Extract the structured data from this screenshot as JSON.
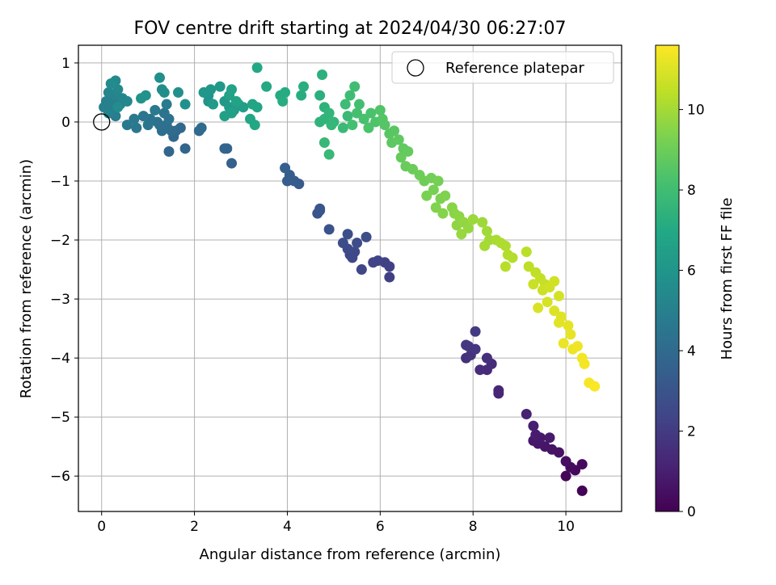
{
  "chart_data": {
    "type": "scatter",
    "title": "FOV centre drift starting at 2024/04/30 06:27:07",
    "xlabel": "Angular distance from reference (arcmin)",
    "ylabel": "Rotation from reference (arcmin)",
    "xlim": [
      -0.5,
      11.2
    ],
    "ylim": [
      -6.6,
      1.3
    ],
    "xticks": [
      0,
      2,
      4,
      6,
      8,
      10
    ],
    "xtick_labels": [
      "0",
      "2",
      "4",
      "6",
      "8",
      "10"
    ],
    "yticks": [
      1,
      0,
      -1,
      -2,
      -3,
      -4,
      -5,
      -6
    ],
    "ytick_labels": [
      "1",
      "0",
      "−1",
      "−2",
      "−3",
      "−4",
      "−5",
      "−6"
    ],
    "grid": true,
    "legend_position": "top-right",
    "legend": {
      "label": "Reference platepar"
    },
    "reference_point": {
      "x": 0,
      "y": 0
    },
    "colormap": "viridis",
    "colorbar": {
      "label": "Hours from first FF file",
      "range": [
        0,
        11.6
      ],
      "ticks": [
        0,
        2,
        4,
        6,
        8,
        10
      ],
      "tick_labels": [
        "0",
        "2",
        "4",
        "6",
        "8",
        "10"
      ]
    },
    "series": [
      {
        "points": [
          [
            10.35,
            -6.25,
            0.05
          ],
          [
            10.0,
            -6.0,
            0.15
          ],
          [
            10.2,
            -5.9,
            0.25
          ],
          [
            10.35,
            -5.8,
            0.3
          ],
          [
            10.1,
            -5.85,
            0.35
          ],
          [
            10.0,
            -5.75,
            0.45
          ],
          [
            9.85,
            -5.6,
            0.55
          ],
          [
            9.7,
            -5.55,
            0.6
          ],
          [
            9.55,
            -5.5,
            0.65
          ],
          [
            9.4,
            -5.45,
            0.7
          ],
          [
            9.3,
            -5.4,
            0.75
          ],
          [
            9.45,
            -5.35,
            0.8
          ],
          [
            9.65,
            -5.35,
            0.85
          ],
          [
            9.35,
            -5.3,
            0.9
          ],
          [
            9.3,
            -5.15,
            1.0
          ],
          [
            9.15,
            -4.95,
            1.1
          ],
          [
            8.55,
            -4.6,
            1.2
          ],
          [
            8.55,
            -4.55,
            1.25
          ],
          [
            8.3,
            -4.2,
            1.4
          ],
          [
            8.15,
            -4.2,
            1.45
          ],
          [
            8.4,
            -4.1,
            1.5
          ],
          [
            8.3,
            -4.0,
            1.55
          ],
          [
            7.85,
            -4.0,
            1.6
          ],
          [
            7.95,
            -3.95,
            1.7
          ],
          [
            8.05,
            -3.85,
            1.8
          ],
          [
            7.9,
            -3.8,
            1.85
          ],
          [
            7.85,
            -3.78,
            1.9
          ],
          [
            8.05,
            -3.55,
            2.0
          ],
          [
            6.2,
            -2.63,
            2.15
          ],
          [
            6.2,
            -2.45,
            2.2
          ],
          [
            6.1,
            -2.38,
            2.25
          ],
          [
            5.95,
            -2.35,
            2.3
          ],
          [
            5.85,
            -2.38,
            2.35
          ],
          [
            5.6,
            -2.5,
            2.4
          ],
          [
            5.35,
            -2.25,
            2.45
          ],
          [
            5.4,
            -2.3,
            2.5
          ],
          [
            5.45,
            -2.2,
            2.55
          ],
          [
            5.3,
            -2.15,
            2.6
          ],
          [
            5.5,
            -2.05,
            2.65
          ],
          [
            5.2,
            -2.05,
            2.7
          ],
          [
            5.7,
            -1.95,
            2.75
          ],
          [
            5.3,
            -1.9,
            2.8
          ],
          [
            4.9,
            -1.82,
            2.9
          ],
          [
            4.65,
            -1.55,
            3.0
          ],
          [
            4.7,
            -1.5,
            3.05
          ],
          [
            4.7,
            -1.47,
            3.1
          ],
          [
            4.25,
            -1.05,
            3.3
          ],
          [
            4.15,
            -1.0,
            3.35
          ],
          [
            4.0,
            -1.0,
            3.4
          ],
          [
            4.05,
            -0.9,
            3.45
          ],
          [
            3.95,
            -0.78,
            3.5
          ],
          [
            2.8,
            -0.7,
            3.6
          ],
          [
            2.7,
            -0.45,
            3.65
          ],
          [
            2.65,
            -0.45,
            3.7
          ],
          [
            1.8,
            -0.45,
            3.75
          ],
          [
            1.45,
            -0.5,
            3.8
          ],
          [
            1.55,
            -0.25,
            3.85
          ],
          [
            1.6,
            -0.15,
            3.9
          ],
          [
            1.7,
            -0.1,
            3.95
          ],
          [
            2.1,
            -0.15,
            4.0
          ],
          [
            2.15,
            -0.1,
            4.05
          ],
          [
            1.5,
            -0.15,
            4.1
          ],
          [
            1.3,
            -0.15,
            4.15
          ],
          [
            1.4,
            -0.05,
            4.2
          ],
          [
            1.25,
            -0.05,
            4.25
          ],
          [
            1.2,
            0.0,
            4.3
          ],
          [
            1.45,
            0.05,
            4.35
          ],
          [
            1.35,
            0.15,
            4.4
          ],
          [
            1.05,
            0.05,
            4.45
          ],
          [
            0.9,
            0.1,
            4.5
          ],
          [
            1.0,
            -0.05,
            4.55
          ],
          [
            0.75,
            -0.1,
            4.6
          ],
          [
            0.55,
            -0.05,
            4.65
          ],
          [
            0.7,
            0.05,
            4.7
          ],
          [
            1.15,
            0.2,
            4.75
          ],
          [
            1.4,
            0.3,
            4.8
          ],
          [
            0.3,
            0.1,
            4.85
          ],
          [
            0.2,
            0.2,
            4.9
          ],
          [
            0.25,
            0.35,
            4.95
          ],
          [
            0.1,
            0.35,
            5.0
          ],
          [
            0.05,
            0.25,
            5.05
          ],
          [
            0.15,
            0.15,
            5.1
          ],
          [
            0.4,
            0.3,
            5.15
          ],
          [
            0.3,
            0.45,
            5.2
          ],
          [
            0.15,
            0.5,
            5.25
          ],
          [
            0.45,
            0.4,
            5.3
          ],
          [
            0.55,
            0.35,
            5.35
          ],
          [
            0.35,
            0.55,
            5.4
          ],
          [
            0.3,
            0.7,
            5.45
          ],
          [
            0.2,
            0.65,
            5.5
          ],
          [
            0.35,
            0.25,
            5.55
          ],
          [
            1.3,
            0.55,
            5.6
          ],
          [
            1.35,
            0.5,
            5.65
          ],
          [
            1.65,
            0.5,
            5.7
          ],
          [
            1.25,
            0.75,
            5.75
          ],
          [
            1.8,
            0.3,
            5.8
          ],
          [
            0.95,
            0.45,
            5.85
          ],
          [
            0.85,
            0.4,
            5.9
          ],
          [
            2.3,
            0.35,
            5.95
          ],
          [
            2.3,
            0.45,
            6.0
          ],
          [
            2.2,
            0.5,
            6.05
          ],
          [
            2.35,
            0.55,
            6.1
          ],
          [
            2.55,
            0.6,
            6.15
          ],
          [
            2.65,
            0.35,
            6.2
          ],
          [
            2.4,
            0.3,
            6.25
          ],
          [
            2.75,
            0.25,
            6.3
          ],
          [
            2.85,
            0.2,
            6.35
          ],
          [
            2.95,
            0.3,
            6.4
          ],
          [
            3.05,
            0.25,
            6.45
          ],
          [
            2.65,
            0.1,
            6.5
          ],
          [
            2.8,
            0.15,
            6.55
          ],
          [
            2.75,
            0.45,
            6.6
          ],
          [
            2.8,
            0.55,
            6.65
          ],
          [
            2.9,
            0.35,
            6.7
          ],
          [
            3.25,
            0.3,
            6.75
          ],
          [
            3.35,
            0.25,
            6.8
          ],
          [
            3.2,
            0.05,
            6.85
          ],
          [
            3.3,
            -0.05,
            6.9
          ],
          [
            3.35,
            0.92,
            6.95
          ],
          [
            3.55,
            0.6,
            7.0
          ],
          [
            3.85,
            0.45,
            7.05
          ],
          [
            3.95,
            0.5,
            7.1
          ],
          [
            3.9,
            0.35,
            7.15
          ],
          [
            4.3,
            0.45,
            7.2
          ],
          [
            4.35,
            0.6,
            7.25
          ],
          [
            4.7,
            0.45,
            7.3
          ],
          [
            4.75,
            0.8,
            7.35
          ],
          [
            4.8,
            0.25,
            7.4
          ],
          [
            4.7,
            0.0,
            7.45
          ],
          [
            4.8,
            0.05,
            7.5
          ],
          [
            4.9,
            0.15,
            7.55
          ],
          [
            5.0,
            0.0,
            7.6
          ],
          [
            4.95,
            -0.05,
            7.65
          ],
          [
            4.8,
            -0.35,
            7.7
          ],
          [
            4.9,
            -0.55,
            7.75
          ],
          [
            5.2,
            -0.1,
            7.8
          ],
          [
            5.3,
            0.1,
            7.85
          ],
          [
            5.25,
            0.3,
            7.9
          ],
          [
            5.35,
            0.45,
            7.95
          ],
          [
            5.45,
            0.6,
            8.0
          ],
          [
            5.55,
            0.3,
            8.05
          ],
          [
            5.4,
            -0.05,
            8.1
          ],
          [
            5.5,
            0.15,
            8.15
          ],
          [
            5.65,
            0.05,
            8.2
          ],
          [
            5.8,
            0.15,
            8.25
          ],
          [
            5.75,
            -0.1,
            8.3
          ],
          [
            5.9,
            0.0,
            8.35
          ],
          [
            6.0,
            0.2,
            8.4
          ],
          [
            6.05,
            0.05,
            8.45
          ],
          [
            6.1,
            -0.05,
            8.5
          ],
          [
            6.2,
            -0.2,
            8.55
          ],
          [
            6.3,
            -0.15,
            8.6
          ],
          [
            6.25,
            -0.35,
            8.65
          ],
          [
            6.4,
            -0.3,
            8.7
          ],
          [
            6.5,
            -0.45,
            8.75
          ],
          [
            6.6,
            -0.5,
            8.8
          ],
          [
            6.45,
            -0.6,
            8.85
          ],
          [
            6.55,
            -0.75,
            8.9
          ],
          [
            6.7,
            -0.8,
            8.95
          ],
          [
            6.85,
            -0.9,
            9.0
          ],
          [
            6.95,
            -1.0,
            9.05
          ],
          [
            7.1,
            -0.95,
            9.1
          ],
          [
            7.25,
            -1.0,
            9.15
          ],
          [
            7.15,
            -1.15,
            9.2
          ],
          [
            7.0,
            -1.25,
            9.25
          ],
          [
            7.3,
            -1.3,
            9.3
          ],
          [
            7.4,
            -1.25,
            9.35
          ],
          [
            7.2,
            -1.45,
            9.4
          ],
          [
            7.35,
            -1.55,
            9.45
          ],
          [
            7.55,
            -1.45,
            9.5
          ],
          [
            7.6,
            -1.55,
            9.55
          ],
          [
            7.7,
            -1.6,
            9.6
          ],
          [
            7.65,
            -1.75,
            9.65
          ],
          [
            7.8,
            -1.7,
            9.7
          ],
          [
            7.9,
            -1.8,
            9.75
          ],
          [
            7.75,
            -1.9,
            9.8
          ],
          [
            8.0,
            -1.65,
            9.85
          ],
          [
            8.2,
            -1.7,
            9.9
          ],
          [
            8.3,
            -1.85,
            9.95
          ],
          [
            8.35,
            -2.0,
            10.0
          ],
          [
            8.25,
            -2.1,
            10.05
          ],
          [
            8.5,
            -2.0,
            10.1
          ],
          [
            8.6,
            -2.05,
            10.15
          ],
          [
            8.7,
            -2.1,
            10.2
          ],
          [
            8.75,
            -2.25,
            10.25
          ],
          [
            8.85,
            -2.3,
            10.3
          ],
          [
            8.7,
            -2.45,
            10.35
          ],
          [
            9.15,
            -2.2,
            10.4
          ],
          [
            9.2,
            -2.45,
            10.45
          ],
          [
            9.35,
            -2.55,
            10.5
          ],
          [
            9.45,
            -2.65,
            10.55
          ],
          [
            9.55,
            -2.75,
            10.6
          ],
          [
            9.3,
            -2.75,
            10.65
          ],
          [
            9.5,
            -2.85,
            10.7
          ],
          [
            9.65,
            -2.8,
            10.75
          ],
          [
            9.75,
            -2.7,
            10.8
          ],
          [
            9.85,
            -2.95,
            10.85
          ],
          [
            9.6,
            -3.05,
            10.9
          ],
          [
            9.4,
            -3.15,
            10.95
          ],
          [
            9.75,
            -3.2,
            11.0
          ],
          [
            9.9,
            -3.3,
            11.05
          ],
          [
            9.85,
            -3.4,
            11.1
          ],
          [
            10.05,
            -3.45,
            11.15
          ],
          [
            10.1,
            -3.6,
            11.2
          ],
          [
            9.95,
            -3.75,
            11.25
          ],
          [
            10.15,
            -3.85,
            11.3
          ],
          [
            10.25,
            -3.8,
            11.35
          ],
          [
            10.35,
            -4.0,
            11.4
          ],
          [
            10.4,
            -4.1,
            11.45
          ],
          [
            10.5,
            -4.42,
            11.5
          ],
          [
            10.62,
            -4.48,
            11.55
          ]
        ]
      }
    ]
  }
}
